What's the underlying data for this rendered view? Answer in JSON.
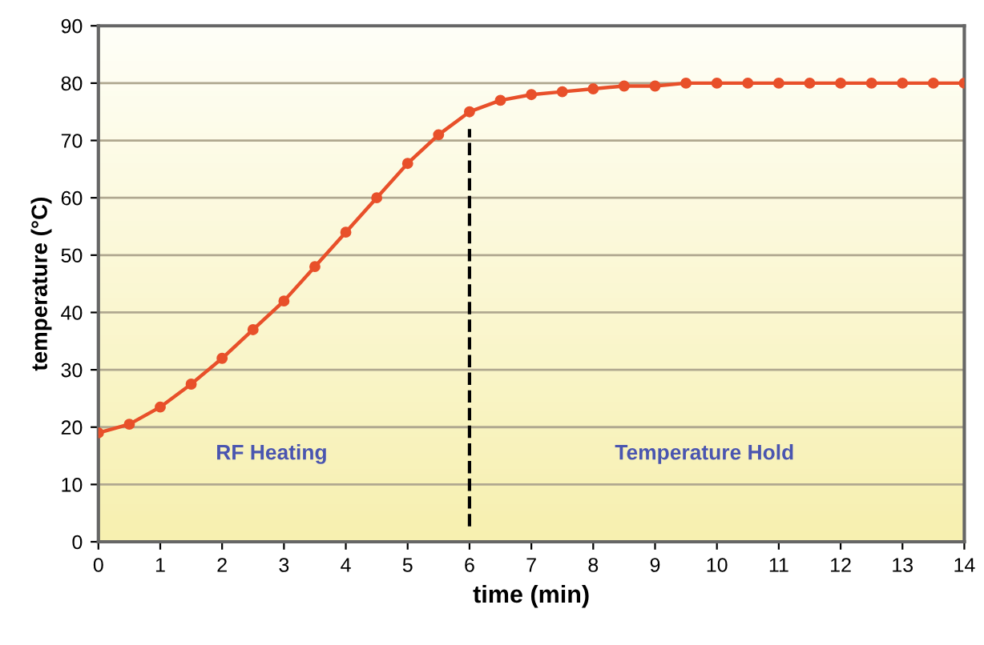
{
  "chart_data": {
    "type": "line",
    "xlabel": "time (min)",
    "ylabel": "temperature (°C)",
    "x": [
      0,
      0.5,
      1,
      1.5,
      2,
      2.5,
      3,
      3.5,
      4,
      4.5,
      5,
      5.5,
      6,
      6.5,
      7,
      7.5,
      8,
      8.5,
      9,
      9.5,
      10,
      10.5,
      11,
      11.5,
      12,
      12.5,
      13,
      13.5,
      14
    ],
    "series": [
      {
        "color": "#e8502a",
        "values": [
          19,
          20.5,
          23.5,
          27.5,
          32,
          37,
          42,
          48,
          54,
          60,
          66,
          71,
          75,
          77,
          78,
          78.5,
          79,
          79.5,
          79.5,
          80,
          80,
          80,
          80,
          80,
          80,
          80,
          80,
          80,
          80
        ]
      }
    ],
    "xlim": [
      0,
      14
    ],
    "xticks": [
      0,
      1,
      2,
      3,
      4,
      5,
      6,
      7,
      8,
      9,
      10,
      11,
      12,
      13,
      14
    ],
    "ylim": [
      0,
      90
    ],
    "yticks": [
      0,
      10,
      20,
      30,
      40,
      50,
      60,
      70,
      80,
      90
    ],
    "grid": "y",
    "marker": "circle",
    "line_style": "solid",
    "ref_lines": [
      {
        "axis": "x",
        "value": 6,
        "color": "#000000",
        "line_style": "dashed"
      }
    ],
    "annotations": [
      "RF Heating",
      "Temperature Hold"
    ]
  }
}
